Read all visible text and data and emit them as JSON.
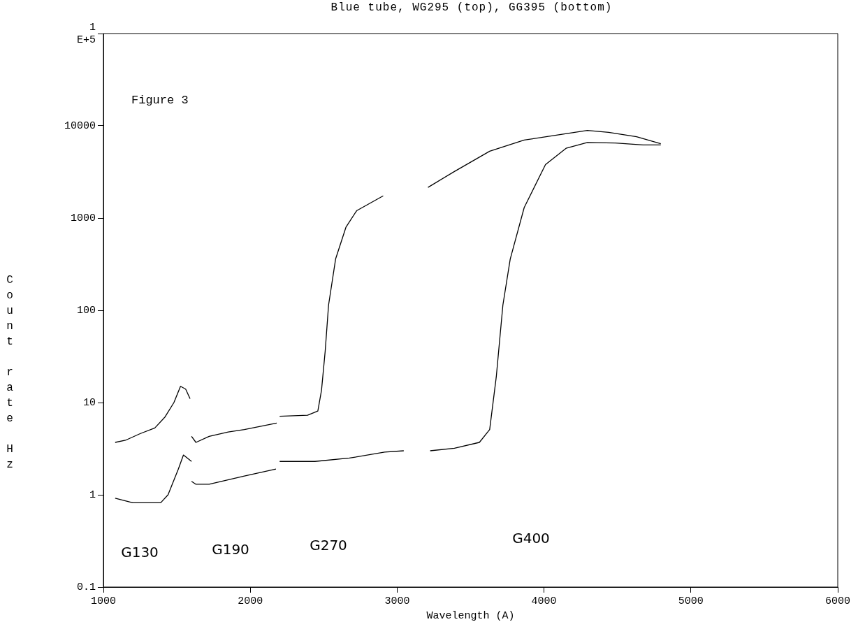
{
  "chart_data": {
    "type": "line",
    "title": "Blue tube, WG295 (top), GG395 (bottom)",
    "xlabel": "Wavelength (A)",
    "ylabel": "Count rate Hz",
    "series": [
      {
        "color": "#000000",
        "x": [
          1080,
          1150,
          1250,
          1350,
          1420,
          1480,
          1525,
          1560,
          1590,
          null,
          1600,
          1630,
          1720,
          1850,
          1960,
          2180,
          null,
          2200,
          2390,
          2460,
          2485,
          2510,
          2533,
          2581,
          2652,
          2724,
          2905,
          null,
          3210,
          3390,
          3630,
          3865,
          4100,
          4295,
          4440,
          4630,
          4795
        ],
        "values": [
          3.7,
          3.9,
          4.6,
          5.3,
          7,
          10,
          15,
          14,
          11,
          null,
          4.3,
          3.7,
          4.3,
          4.8,
          5.1,
          6.0,
          null,
          7.1,
          7.3,
          8.1,
          13.6,
          36,
          114,
          360,
          800,
          1200,
          1740,
          null,
          2150,
          3200,
          5300,
          7000,
          8000,
          8900,
          8500,
          7600,
          6400
        ]
      },
      {
        "color": "#000000",
        "x": [
          1080,
          1200,
          1390,
          1440,
          1510,
          1545,
          1600,
          null,
          1600,
          1630,
          1720,
          1960,
          2175,
          null,
          2200,
          2440,
          2675,
          2915,
          3045,
          null,
          3225,
          3390,
          3560,
          3630,
          3675,
          3720,
          3770,
          3865,
          4010,
          4150,
          4295,
          4485,
          4675,
          4795
        ],
        "values": [
          0.92,
          0.82,
          0.82,
          1.0,
          1.9,
          2.7,
          2.3,
          null,
          1.4,
          1.3,
          1.3,
          1.6,
          1.9,
          null,
          2.3,
          2.3,
          2.5,
          2.9,
          3.0,
          null,
          3.0,
          3.2,
          3.7,
          5.1,
          19,
          114,
          360,
          1300,
          3800,
          5700,
          6600,
          6500,
          6200,
          6200
        ]
      }
    ],
    "xlim": [
      1000,
      6000
    ],
    "xticks": [
      1000,
      2000,
      3000,
      4000,
      5000,
      6000
    ],
    "ylim": [
      0.1,
      100000
    ],
    "yticks": [
      0.1,
      1,
      10,
      100,
      1000,
      10000,
      {
        "value": 100000,
        "label": "1 E+5"
      }
    ],
    "log": "y",
    "grid": false,
    "legend": false,
    "marker": "none",
    "line_style": "solid",
    "annotations": [
      "Figure 3",
      "G130",
      "G190",
      "G270",
      "G400"
    ]
  }
}
